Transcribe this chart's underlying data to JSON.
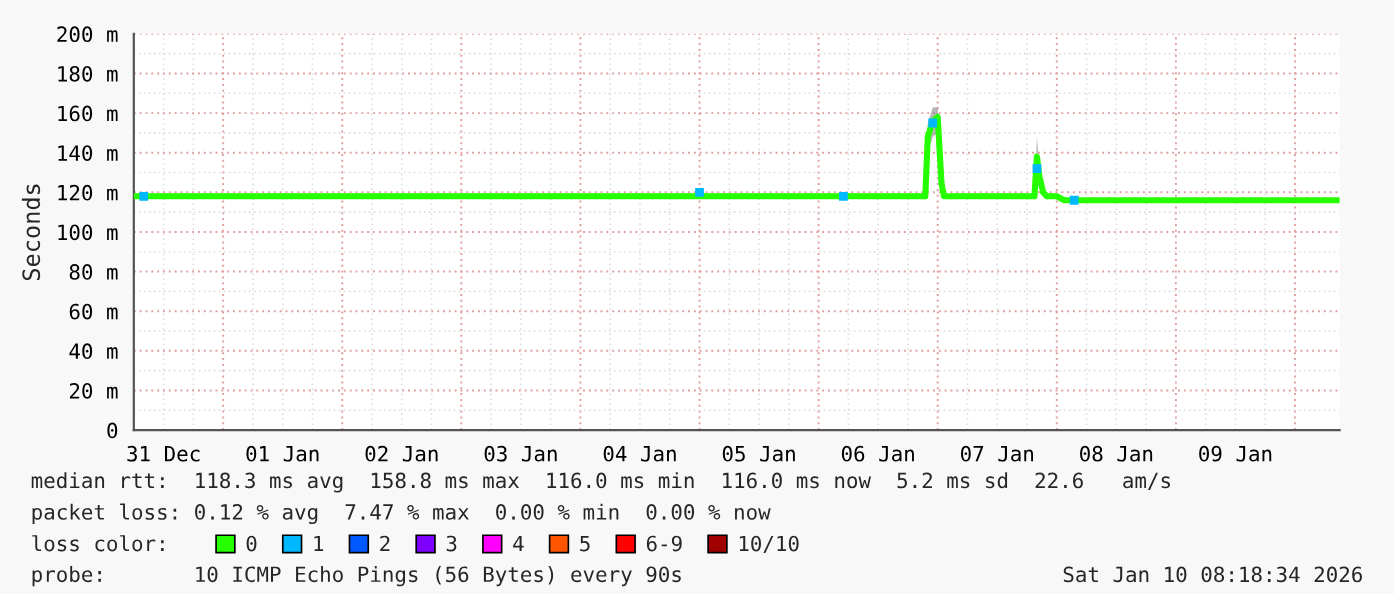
{
  "chart_data": {
    "type": "line",
    "ylabel": "Seconds",
    "legend_title": "loss color:",
    "annotations": [
      "median rtt:  118.3 ms avg  158.8 ms max  116.0 ms min  116.0 ms now  5.2 ms sd  22.6   am/s",
      "packet loss: 0.12 % avg  7.47 % max  0.00 % min  0.00 % now",
      "probe:       10 ICMP Echo Pings (56 Bytes) every 90s",
      "Sat Jan 10 08:18:34 2026"
    ],
    "xlim": [
      "2025-12-31T06:00",
      "2026-01-10T09:00"
    ],
    "xticks": [
      {
        "value": "2025-12-31T12:00",
        "label": "31 Dec"
      },
      {
        "value": "2026-01-01T00:00",
        "label": null
      },
      {
        "value": "2026-01-01T12:00",
        "label": "01 Jan"
      },
      {
        "value": "2026-01-02T00:00",
        "label": null
      },
      {
        "value": "2026-01-02T12:00",
        "label": "02 Jan"
      },
      {
        "value": "2026-01-03T00:00",
        "label": null
      },
      {
        "value": "2026-01-03T12:00",
        "label": "03 Jan"
      },
      {
        "value": "2026-01-04T00:00",
        "label": null
      },
      {
        "value": "2026-01-04T12:00",
        "label": "04 Jan"
      },
      {
        "value": "2026-01-05T00:00",
        "label": null
      },
      {
        "value": "2026-01-05T12:00",
        "label": "05 Jan"
      },
      {
        "value": "2026-01-06T00:00",
        "label": null
      },
      {
        "value": "2026-01-06T12:00",
        "label": "06 Jan"
      },
      {
        "value": "2026-01-07T00:00",
        "label": null
      },
      {
        "value": "2026-01-07T12:00",
        "label": "07 Jan"
      },
      {
        "value": "2026-01-08T00:00",
        "label": null
      },
      {
        "value": "2026-01-08T12:00",
        "label": "08 Jan"
      },
      {
        "value": "2026-01-09T00:00",
        "label": null
      },
      {
        "value": "2026-01-09T12:00",
        "label": "09 Jan"
      },
      {
        "value": "2026-01-10T00:00",
        "label": null
      }
    ],
    "ylim": [
      0,
      200
    ],
    "yticks": [
      0,
      {
        "value": 20,
        "label": "20 m"
      },
      {
        "value": 40,
        "label": "40 m"
      },
      {
        "value": 60,
        "label": "60 m"
      },
      {
        "value": 80,
        "label": "80 m"
      },
      {
        "value": 100,
        "label": "100 m"
      },
      {
        "value": 120,
        "label": "120 m"
      },
      {
        "value": 140,
        "label": "140 m"
      },
      {
        "value": 160,
        "label": "160 m"
      },
      {
        "value": 180,
        "label": "180 m"
      },
      {
        "value": 200,
        "label": "200 m"
      }
    ],
    "grid": true,
    "legend": "bottom",
    "series": [
      {
        "name": "0",
        "color": "#26ff00",
        "x": [
          "2025-12-31T06:00",
          "2026-01-01T00:00",
          "2026-01-02T00:00",
          "2026-01-03T00:00",
          "2026-01-04T00:00",
          "2026-01-05T00:00",
          "2026-01-06T00:00",
          "2026-01-06T21:30",
          "2026-01-06T22:00",
          "2026-01-06T23:00",
          "2026-01-07T00:00",
          "2026-01-07T00:45",
          "2026-01-07T01:15",
          "2026-01-07T19:30",
          "2026-01-07T20:00",
          "2026-01-07T20:30",
          "2026-01-07T21:15",
          "2026-01-07T22:00",
          "2026-01-08T00:00",
          "2026-01-08T01:30",
          "2026-01-08T03:00",
          "2026-01-09T00:00",
          "2026-01-10T09:00"
        ],
        "values": [
          118,
          118,
          118,
          118,
          118,
          118,
          118,
          118,
          148,
          156,
          158,
          125,
          118,
          118,
          138,
          128,
          120,
          118,
          118,
          116,
          116,
          116,
          116
        ],
        "lower": [
          118,
          118,
          118,
          118,
          118,
          118,
          118,
          118,
          140,
          148,
          150,
          120,
          118,
          118,
          126,
          122,
          118,
          118,
          118,
          116,
          116,
          116,
          116
        ],
        "upper": [
          118,
          118,
          118,
          118,
          118,
          118,
          118,
          118,
          155,
          163,
          163,
          130,
          118,
          118,
          148,
          132,
          122,
          118,
          118,
          116,
          116,
          116,
          116
        ]
      },
      {
        "name": "1",
        "color": "#00b8ff",
        "type": "scatter",
        "x": [
          "2025-12-31T08:00",
          "2026-01-05T00:00",
          "2026-01-06T05:00",
          "2026-01-06T23:00",
          "2026-01-07T20:00",
          "2026-01-08T03:30"
        ],
        "values": [
          118,
          120,
          118,
          155,
          132,
          116
        ]
      },
      {
        "name": "2",
        "color": "#0059ff",
        "type": "scatter"
      },
      {
        "name": "3",
        "color": "#7e00ff",
        "type": "scatter"
      },
      {
        "name": "4",
        "color": "#ff00ff",
        "type": "scatter"
      },
      {
        "name": "5",
        "color": "#ff5500",
        "type": "scatter"
      },
      {
        "name": "6-9",
        "color": "#ff0000",
        "type": "scatter"
      },
      {
        "name": "10/10",
        "color": "#a10000",
        "type": "scatter"
      }
    ]
  }
}
